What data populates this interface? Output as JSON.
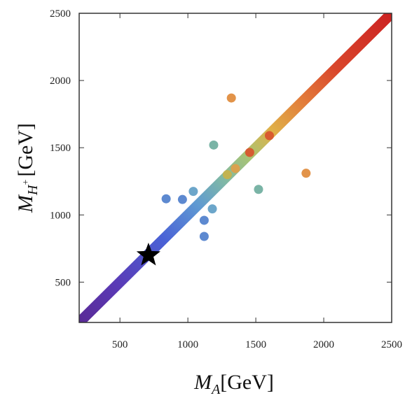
{
  "chart_data": {
    "type": "scatter",
    "title": "",
    "xlabel": {
      "symbol": "M",
      "subscript": "A",
      "unit": "[GeV]"
    },
    "ylabel": {
      "symbol": "M",
      "subscript": "H",
      "superscript": "+",
      "unit": "[GeV]"
    },
    "xlim": [
      200,
      2500
    ],
    "ylim": [
      200,
      2500
    ],
    "x_ticks": [
      "500",
      "1000",
      "1500",
      "2000",
      "2500"
    ],
    "y_ticks": [
      "500",
      "1000",
      "1500",
      "2000",
      "2500"
    ],
    "grid": false,
    "legend": "none",
    "colormap": "rainbow (purple at low mass to red at high mass)",
    "diagonal_band": {
      "from": 200,
      "to": 2500,
      "description": "dense points along M_H+ = M_A"
    },
    "series": [
      {
        "points": [
          {
            "x": 1320,
            "y": 1870,
            "color": "#e08a3a"
          },
          {
            "x": 1870,
            "y": 1310,
            "color": "#e08a3a"
          },
          {
            "x": 1190,
            "y": 1520,
            "color": "#6fae9e"
          },
          {
            "x": 1520,
            "y": 1190,
            "color": "#6fae9e"
          },
          {
            "x": 1040,
            "y": 1175,
            "color": "#5f9ec6"
          },
          {
            "x": 1180,
            "y": 1045,
            "color": "#5f9ec6"
          },
          {
            "x": 840,
            "y": 1120,
            "color": "#4f7fcc"
          },
          {
            "x": 960,
            "y": 1115,
            "color": "#4f7fcc"
          },
          {
            "x": 1120,
            "y": 960,
            "color": "#4f7fcc"
          },
          {
            "x": 1120,
            "y": 840,
            "color": "#4f7fcc"
          },
          {
            "x": 1455,
            "y": 1465,
            "color": "#d9542c"
          },
          {
            "x": 1600,
            "y": 1590,
            "color": "#d9542c"
          },
          {
            "x": 1290,
            "y": 1300,
            "color": "#c8b24a"
          },
          {
            "x": 1350,
            "y": 1345,
            "color": "#e0a04a"
          }
        ]
      }
    ],
    "benchmark": {
      "x": 710,
      "y": 700,
      "marker": "star",
      "color": "#000000"
    }
  }
}
